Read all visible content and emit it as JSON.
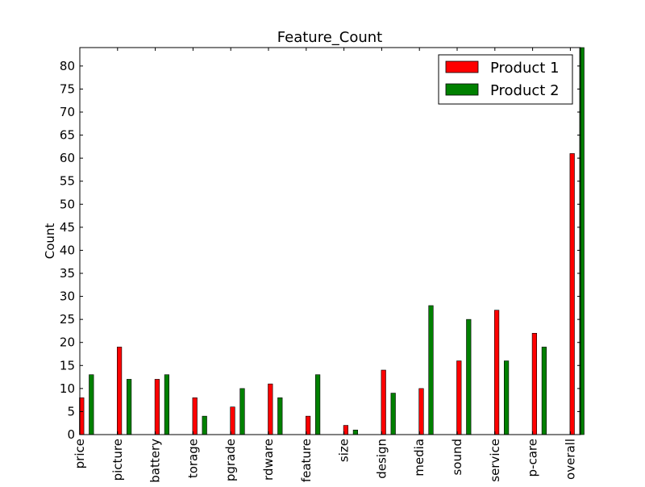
{
  "chart_data": {
    "type": "bar",
    "title": "Feature_Count",
    "ylabel": "Count",
    "xlabel": "",
    "categories": [
      "price",
      "picture",
      "battery",
      "storage",
      "upgrade",
      "hardware",
      "feature",
      "size",
      "design",
      "media",
      "sound",
      "service",
      "setup-care",
      "overall"
    ],
    "category_labels_visible": [
      "price",
      "picture",
      "battery",
      "torage",
      "pgrade",
      "rdware",
      "feature",
      "size",
      "design",
      "media",
      "sound",
      "service",
      "p-care",
      "overall"
    ],
    "series": [
      {
        "name": "Product 1",
        "color": "#ff0000",
        "values": [
          8,
          19,
          12,
          8,
          6,
          11,
          4,
          2,
          14,
          10,
          16,
          27,
          22,
          61
        ]
      },
      {
        "name": "Product 2",
        "color": "#008000",
        "values": [
          13,
          12,
          13,
          4,
          10,
          8,
          13,
          1,
          9,
          28,
          25,
          16,
          19,
          84
        ]
      }
    ],
    "ylim": [
      0,
      84
    ],
    "yticks": [
      0,
      5,
      10,
      15,
      20,
      25,
      30,
      35,
      40,
      45,
      50,
      55,
      60,
      65,
      70,
      75,
      80
    ],
    "grid": false,
    "legend_position": "top-right"
  }
}
